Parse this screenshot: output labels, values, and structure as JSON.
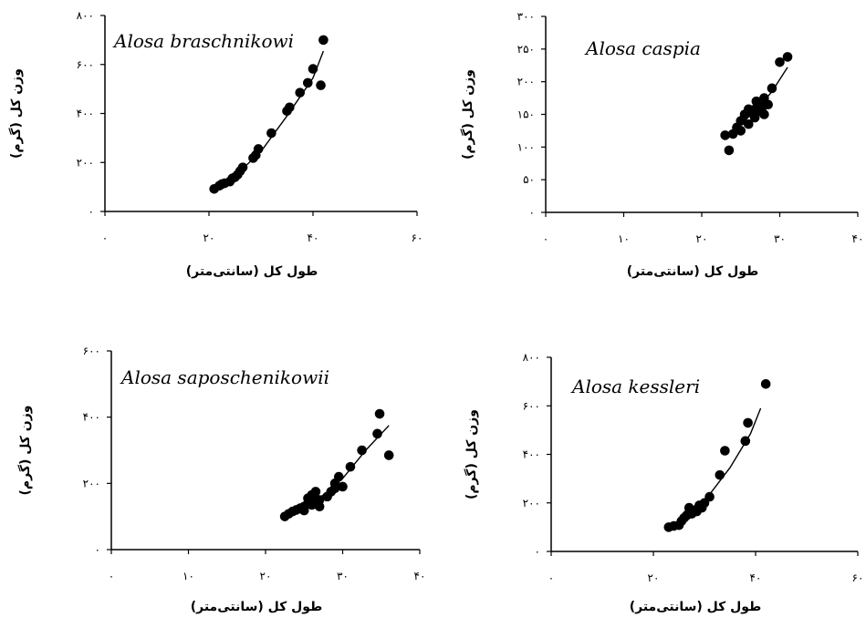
{
  "chart_data": [
    {
      "type": "scatter",
      "title": "Alosa braschnikowi",
      "xlabel": "طول کل (سانتی‌متر)",
      "ylabel": "وزن کل (گرم)",
      "xlim": [
        0,
        60
      ],
      "ylim": [
        0,
        800
      ],
      "xticks": [
        0,
        20,
        40,
        60
      ],
      "yticks": [
        0,
        200,
        400,
        600,
        800
      ],
      "xtick_labels": [
        "۰",
        "۲۰",
        "۴۰",
        "۶۰"
      ],
      "ytick_labels": [
        "۰",
        "۲۰۰",
        "۴۰۰",
        "۶۰۰",
        "۸۰۰"
      ],
      "points": [
        [
          21,
          92
        ],
        [
          22,
          105
        ],
        [
          22.5,
          112
        ],
        [
          23,
          115
        ],
        [
          24,
          122
        ],
        [
          24.5,
          135
        ],
        [
          25,
          140
        ],
        [
          25.5,
          150
        ],
        [
          26,
          165
        ],
        [
          26.5,
          180
        ],
        [
          28.5,
          218
        ],
        [
          29,
          230
        ],
        [
          29.5,
          255
        ],
        [
          32,
          320
        ],
        [
          35,
          410
        ],
        [
          35.5,
          425
        ],
        [
          37.5,
          485
        ],
        [
          39,
          525
        ],
        [
          40,
          582
        ],
        [
          41.5,
          515
        ],
        [
          42,
          700
        ]
      ],
      "fit_curve": [
        [
          21,
          88
        ],
        [
          25,
          145
        ],
        [
          30,
          245
        ],
        [
          35,
          390
        ],
        [
          40,
          545
        ],
        [
          42,
          655
        ]
      ]
    },
    {
      "type": "scatter",
      "title": "Alosa caspia",
      "xlabel": "طول کل (سانتی‌متر)",
      "ylabel": "وزن کل (گرم)",
      "xlim": [
        0,
        40
      ],
      "ylim": [
        0,
        300
      ],
      "xticks": [
        0,
        10,
        20,
        30,
        40
      ],
      "yticks": [
        0,
        50,
        100,
        150,
        200,
        250,
        300
      ],
      "xtick_labels": [
        "۰",
        "۱۰",
        "۲۰",
        "۳۰",
        "۴۰"
      ],
      "ytick_labels": [
        "۰",
        "۵۰",
        "۱۰۰",
        "۱۵۰",
        "۲۰۰",
        "۲۵۰",
        "۳۰۰"
      ],
      "points": [
        [
          23,
          118
        ],
        [
          23.5,
          95
        ],
        [
          24,
          120
        ],
        [
          24.5,
          130
        ],
        [
          25,
          140
        ],
        [
          25,
          125
        ],
        [
          25.5,
          150
        ],
        [
          26,
          135
        ],
        [
          26,
          158
        ],
        [
          26.5,
          152
        ],
        [
          27,
          170
        ],
        [
          27,
          160
        ],
        [
          27.5,
          155
        ],
        [
          28,
          150
        ],
        [
          28,
          175
        ],
        [
          28.5,
          165
        ],
        [
          29,
          190
        ],
        [
          30,
          230
        ],
        [
          31,
          238
        ],
        [
          26.8,
          145
        ],
        [
          27.8,
          162
        ]
      ],
      "fit_curve": [
        [
          23,
          115
        ],
        [
          25,
          135
        ],
        [
          27,
          157
        ],
        [
          29,
          185
        ],
        [
          31,
          222
        ]
      ]
    },
    {
      "type": "scatter",
      "title": "Alosa saposchenikowii",
      "xlabel": "طول کل (سانتی‌متر)",
      "ylabel": "وزن کل (گرم)",
      "xlim": [
        0,
        40
      ],
      "ylim": [
        0,
        600
      ],
      "xticks": [
        0,
        10,
        20,
        30,
        40
      ],
      "yticks": [
        0,
        200,
        400,
        600
      ],
      "xtick_labels": [
        "۰",
        "۱۰",
        "۲۰",
        "۳۰",
        "۴۰"
      ],
      "ytick_labels": [
        "۰",
        "۲۰۰",
        "۴۰۰",
        "۶۰۰"
      ],
      "points": [
        [
          22.5,
          100
        ],
        [
          23,
          108
        ],
        [
          23.5,
          115
        ],
        [
          24,
          120
        ],
        [
          24.5,
          125
        ],
        [
          25,
          130
        ],
        [
          25,
          118
        ],
        [
          25.5,
          140
        ],
        [
          25.5,
          155
        ],
        [
          26,
          135
        ],
        [
          26,
          165
        ],
        [
          26.5,
          145
        ],
        [
          26.5,
          175
        ],
        [
          27,
          150
        ],
        [
          27,
          130
        ],
        [
          28,
          160
        ],
        [
          28.5,
          175
        ],
        [
          29,
          200
        ],
        [
          29,
          185
        ],
        [
          29.5,
          220
        ],
        [
          30,
          190
        ],
        [
          31,
          250
        ],
        [
          32.5,
          300
        ],
        [
          34.5,
          350
        ],
        [
          34.8,
          410
        ],
        [
          36,
          285
        ]
      ],
      "fit_curve": [
        [
          22.5,
          98
        ],
        [
          25,
          128
        ],
        [
          27.5,
          165
        ],
        [
          30,
          215
        ],
        [
          33,
          300
        ],
        [
          36,
          375
        ]
      ]
    },
    {
      "type": "scatter",
      "title": "Alosa kessleri",
      "xlabel": "طول کل (سانتی‌متر)",
      "ylabel": "وزن کل (گرم)",
      "xlim": [
        0,
        60
      ],
      "ylim": [
        0,
        800
      ],
      "xticks": [
        0,
        20,
        40,
        60
      ],
      "yticks": [
        0,
        200,
        400,
        600,
        800
      ],
      "xtick_labels": [
        "۰",
        "۲۰",
        "۴۰",
        "۶۰"
      ],
      "ytick_labels": [
        "۰",
        "۲۰۰",
        "۴۰۰",
        "۶۰۰",
        "۸۰۰"
      ],
      "points": [
        [
          23,
          100
        ],
        [
          24,
          105
        ],
        [
          25,
          108
        ],
        [
          25.5,
          125
        ],
        [
          26,
          138
        ],
        [
          26.5,
          148
        ],
        [
          27,
          160
        ],
        [
          27,
          180
        ],
        [
          27.5,
          155
        ],
        [
          28,
          170
        ],
        [
          28.5,
          165
        ],
        [
          29,
          190
        ],
        [
          29.5,
          180
        ],
        [
          30,
          200
        ],
        [
          31,
          225
        ],
        [
          33,
          315
        ],
        [
          34,
          415
        ],
        [
          38,
          455
        ],
        [
          38.5,
          530
        ],
        [
          42,
          690
        ]
      ],
      "fit_curve": [
        [
          23,
          95
        ],
        [
          27,
          150
        ],
        [
          31,
          235
        ],
        [
          35,
          345
        ],
        [
          39,
          485
        ],
        [
          41,
          590
        ]
      ]
    }
  ]
}
